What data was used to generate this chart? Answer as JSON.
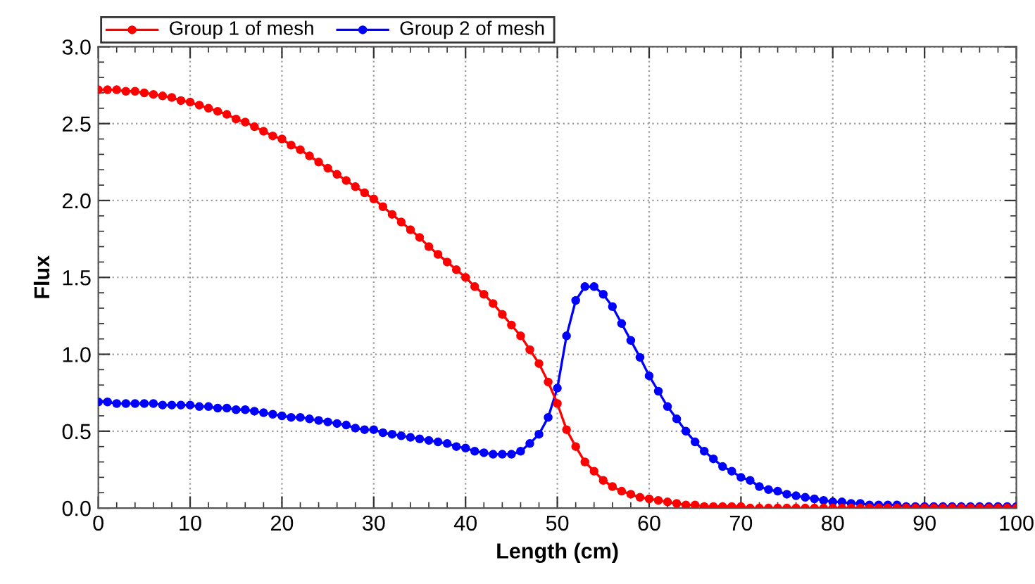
{
  "chart_data": {
    "type": "line",
    "xlabel": "Length (cm)",
    "ylabel": "Flux",
    "x": [
      0,
      1,
      2,
      3,
      4,
      5,
      6,
      7,
      8,
      9,
      10,
      11,
      12,
      13,
      14,
      15,
      16,
      17,
      18,
      19,
      20,
      21,
      22,
      23,
      24,
      25,
      26,
      27,
      28,
      29,
      30,
      31,
      32,
      33,
      34,
      35,
      36,
      37,
      38,
      39,
      40,
      41,
      42,
      43,
      44,
      45,
      46,
      47,
      48,
      49,
      50,
      51,
      52,
      53,
      54,
      55,
      56,
      57,
      58,
      59,
      60,
      61,
      62,
      63,
      64,
      65,
      66,
      67,
      68,
      69,
      70,
      71,
      72,
      73,
      74,
      75,
      76,
      77,
      78,
      79,
      80,
      81,
      82,
      83,
      84,
      85,
      86,
      87,
      88,
      89,
      90,
      91,
      92,
      93,
      94,
      95,
      96,
      97,
      98,
      99,
      100
    ],
    "series": [
      {
        "name": "Group 1 of mesh",
        "color": "#ff0000",
        "values": [
          2.72,
          2.72,
          2.72,
          2.71,
          2.71,
          2.7,
          2.69,
          2.68,
          2.67,
          2.65,
          2.64,
          2.62,
          2.6,
          2.58,
          2.56,
          2.53,
          2.51,
          2.48,
          2.45,
          2.42,
          2.4,
          2.36,
          2.33,
          2.29,
          2.25,
          2.21,
          2.17,
          2.13,
          2.09,
          2.05,
          2.01,
          1.96,
          1.91,
          1.86,
          1.81,
          1.76,
          1.7,
          1.65,
          1.6,
          1.55,
          1.5,
          1.44,
          1.39,
          1.33,
          1.26,
          1.19,
          1.12,
          1.03,
          0.94,
          0.82,
          0.68,
          0.51,
          0.4,
          0.3,
          0.24,
          0.18,
          0.14,
          0.11,
          0.09,
          0.07,
          0.06,
          0.05,
          0.04,
          0.03,
          0.02,
          0.02,
          0.01,
          0.01,
          0.01,
          0.01,
          0.01,
          0.0,
          0.0,
          0.0,
          0.0,
          0.0,
          0.0,
          0.0,
          0.0,
          0.0,
          0.0,
          0.0,
          0.0,
          0.0,
          0.0,
          0.0,
          0.0,
          0.0,
          0.0,
          0.0,
          0.0,
          0.0,
          0.0,
          0.0,
          0.0,
          0.0,
          0.0,
          0.0,
          0.0,
          0.0,
          0.0
        ]
      },
      {
        "name": "Group 2 of mesh",
        "color": "#0000ff",
        "values": [
          0.69,
          0.69,
          0.68,
          0.68,
          0.68,
          0.68,
          0.68,
          0.67,
          0.67,
          0.67,
          0.67,
          0.66,
          0.66,
          0.65,
          0.65,
          0.64,
          0.64,
          0.63,
          0.62,
          0.61,
          0.6,
          0.59,
          0.59,
          0.58,
          0.57,
          0.56,
          0.55,
          0.54,
          0.52,
          0.51,
          0.51,
          0.49,
          0.48,
          0.47,
          0.46,
          0.45,
          0.44,
          0.43,
          0.42,
          0.4,
          0.39,
          0.37,
          0.36,
          0.35,
          0.35,
          0.35,
          0.37,
          0.42,
          0.48,
          0.59,
          0.78,
          1.12,
          1.35,
          1.44,
          1.44,
          1.39,
          1.31,
          1.2,
          1.09,
          0.98,
          0.86,
          0.76,
          0.66,
          0.58,
          0.5,
          0.43,
          0.37,
          0.32,
          0.27,
          0.24,
          0.2,
          0.18,
          0.14,
          0.12,
          0.11,
          0.09,
          0.08,
          0.07,
          0.06,
          0.05,
          0.04,
          0.04,
          0.03,
          0.03,
          0.02,
          0.02,
          0.02,
          0.02,
          0.01,
          0.01,
          0.01,
          0.01,
          0.01,
          0.01,
          0.01,
          0.01,
          0.01,
          0.01,
          0.01,
          0.01,
          0.01
        ]
      }
    ],
    "xlim": [
      0,
      100
    ],
    "xticks": [
      0,
      10,
      20,
      30,
      40,
      50,
      60,
      70,
      80,
      90,
      100
    ],
    "ylim": [
      0,
      3
    ],
    "yticks": [
      {
        "value": 0,
        "label": "0.0"
      },
      0.5,
      {
        "value": 1,
        "label": "1.0"
      },
      1.5,
      {
        "value": 2,
        "label": "2.0"
      },
      2.5,
      {
        "value": 3,
        "label": "3.0"
      }
    ],
    "grid": true,
    "legend": "top left",
    "marker": "circle",
    "line_style": "solid"
  }
}
